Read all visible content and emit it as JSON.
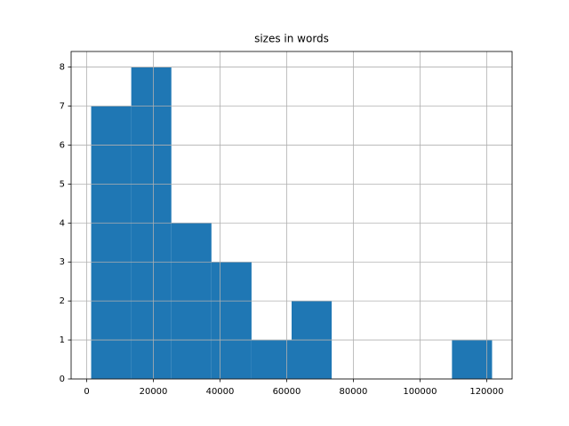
{
  "chart_data": {
    "type": "histogram",
    "title": "sizes in words",
    "bins": [
      1339,
      13366,
      25393,
      37420,
      49447,
      61474,
      73501,
      85528,
      97555,
      109582,
      121609
    ],
    "values": [
      7,
      8,
      4,
      3,
      1,
      2,
      0,
      0,
      0,
      1
    ],
    "color": "#1f77b4",
    "xlim": [
      -4674,
      127620
    ],
    "xticks": [
      0,
      20000,
      40000,
      60000,
      80000,
      100000,
      120000
    ],
    "ylim": [
      0,
      8.4
    ],
    "yticks": [
      0,
      1,
      2,
      3,
      4,
      5,
      6,
      7,
      8
    ],
    "grid": true
  }
}
